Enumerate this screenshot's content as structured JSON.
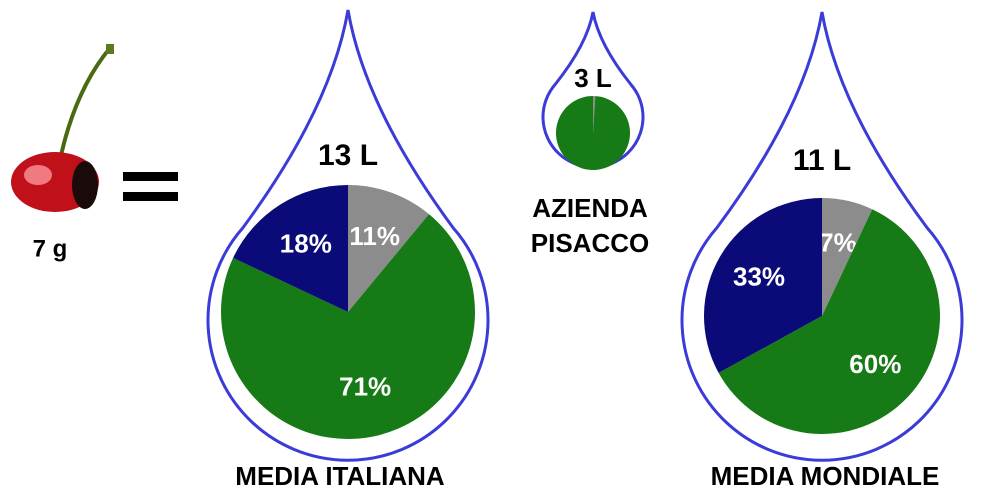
{
  "cherry": {
    "label": "7 g"
  },
  "chart_data": [
    {
      "type": "pie",
      "title": "13 L",
      "caption": [
        "MEDIA ITALIANA"
      ],
      "values": [
        11,
        71,
        18
      ],
      "value_labels": [
        "11%",
        "71%",
        "18%"
      ],
      "colors": [
        "#8c8c8c",
        "#167a16",
        "#0a0a78"
      ]
    },
    {
      "type": "pie",
      "title": "3 L",
      "caption": [
        "AZIENDA",
        "PISACCO"
      ],
      "values": [
        1,
        99
      ],
      "colors": [
        "#8c8c8c",
        "#167a16"
      ]
    },
    {
      "type": "pie",
      "title": "11 L",
      "caption": [
        "MEDIA MONDIALE"
      ],
      "values": [
        7,
        60,
        33
      ],
      "value_labels": [
        "7%",
        "60%",
        "33%"
      ],
      "colors": [
        "#8c8c8c",
        "#167a16",
        "#0a0a78"
      ]
    }
  ]
}
